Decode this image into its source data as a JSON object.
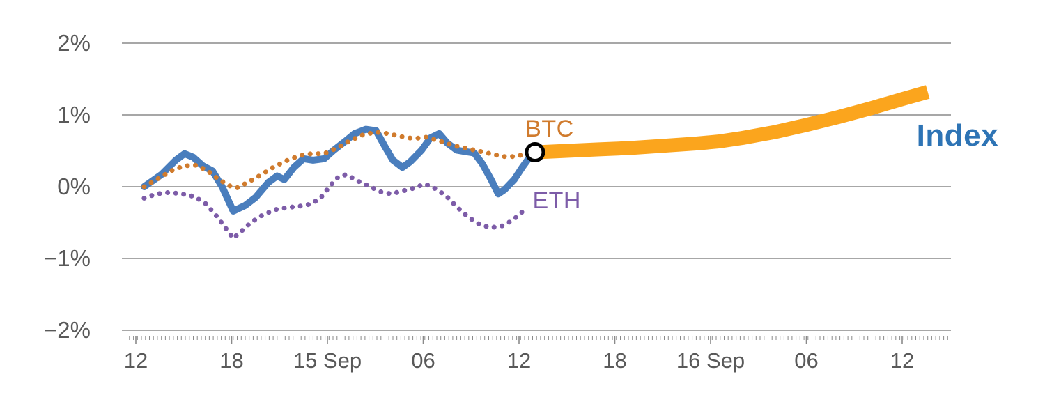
{
  "colors": {
    "background": "#FFFFFF",
    "grid": "#8A8A8A",
    "axis_text": "#595959",
    "index_line": "#4A7EBD",
    "index_label": "#2E74B5",
    "btc": "#D07B2D",
    "eth": "#7D5CA8",
    "forecast": "#FBA51D",
    "marker_ring": "#000000"
  },
  "chart_data": {
    "type": "line",
    "title": "",
    "xlabel": "",
    "ylabel": "",
    "grid": "horizontal",
    "legend_position": "inline-labels",
    "ylim": [
      -2.4,
      2.05
    ],
    "y_ticks": {
      "values": [
        2,
        1,
        0,
        -1,
        -2
      ],
      "labels": [
        "2%",
        "1%",
        "0%",
        "−1%",
        "−2%"
      ]
    },
    "x_ticks": {
      "hours": [
        0,
        6,
        12,
        18,
        24,
        30,
        36,
        42,
        48
      ],
      "labels": [
        "12",
        "18",
        "15 Sep",
        "06",
        "12",
        "18",
        "16 Sep",
        "06",
        "12"
      ]
    },
    "series": [
      {
        "id": "forecast",
        "name": "Index forecast",
        "color": "#FBA51D",
        "style": "solid",
        "width": 20,
        "cap": "butt",
        "points": [
          [
            25.0,
            0.48
          ],
          [
            27,
            0.5
          ],
          [
            29,
            0.52
          ],
          [
            31,
            0.54
          ],
          [
            33,
            0.57
          ],
          [
            35,
            0.6
          ],
          [
            36.5,
            0.63
          ],
          [
            38,
            0.68
          ],
          [
            40,
            0.76
          ],
          [
            42,
            0.86
          ],
          [
            44,
            0.97
          ],
          [
            46,
            1.09
          ],
          [
            48,
            1.22
          ],
          [
            49.6,
            1.32
          ]
        ]
      },
      {
        "id": "index",
        "name": "Index",
        "color": "#4A7EBD",
        "style": "solid",
        "width": 10,
        "cap": "round",
        "points": [
          [
            0.52,
            0.0
          ],
          [
            1.6,
            0.17
          ],
          [
            2.5,
            0.37
          ],
          [
            3.05,
            0.46
          ],
          [
            3.6,
            0.41
          ],
          [
            4.2,
            0.29
          ],
          [
            4.8,
            0.22
          ],
          [
            5.4,
            0.0
          ],
          [
            6.1,
            -0.34
          ],
          [
            6.85,
            -0.26
          ],
          [
            7.5,
            -0.15
          ],
          [
            8.3,
            0.06
          ],
          [
            8.85,
            0.15
          ],
          [
            9.3,
            0.1
          ],
          [
            9.9,
            0.27
          ],
          [
            10.5,
            0.39
          ],
          [
            11.1,
            0.37
          ],
          [
            11.8,
            0.39
          ],
          [
            12.4,
            0.51
          ],
          [
            13.1,
            0.63
          ],
          [
            13.7,
            0.74
          ],
          [
            14.4,
            0.8
          ],
          [
            15.05,
            0.78
          ],
          [
            15.6,
            0.56
          ],
          [
            16.1,
            0.37
          ],
          [
            16.7,
            0.27
          ],
          [
            17.2,
            0.35
          ],
          [
            17.9,
            0.51
          ],
          [
            18.45,
            0.68
          ],
          [
            19.0,
            0.74
          ],
          [
            19.5,
            0.61
          ],
          [
            20.1,
            0.51
          ],
          [
            20.6,
            0.49
          ],
          [
            21.2,
            0.47
          ],
          [
            21.7,
            0.32
          ],
          [
            22.25,
            0.1
          ],
          [
            22.7,
            -0.1
          ],
          [
            23.1,
            -0.04
          ],
          [
            23.7,
            0.1
          ],
          [
            24.2,
            0.27
          ],
          [
            24.7,
            0.42
          ],
          [
            25.0,
            0.48
          ]
        ]
      },
      {
        "id": "btc",
        "name": "BTC",
        "color": "#D07B2D",
        "style": "dotted",
        "width": 7,
        "cap": "round",
        "points": [
          [
            0.52,
            0.0
          ],
          [
            1.3,
            0.1
          ],
          [
            2.2,
            0.22
          ],
          [
            3.0,
            0.29
          ],
          [
            3.8,
            0.3
          ],
          [
            4.5,
            0.22
          ],
          [
            5.2,
            0.1
          ],
          [
            5.9,
            0.01
          ],
          [
            6.3,
            -0.02
          ],
          [
            7.0,
            0.06
          ],
          [
            7.8,
            0.16
          ],
          [
            8.6,
            0.27
          ],
          [
            9.4,
            0.36
          ],
          [
            10.2,
            0.43
          ],
          [
            11.0,
            0.46
          ],
          [
            11.8,
            0.46
          ],
          [
            12.6,
            0.54
          ],
          [
            13.4,
            0.64
          ],
          [
            14.2,
            0.72
          ],
          [
            15.0,
            0.76
          ],
          [
            15.8,
            0.74
          ],
          [
            16.6,
            0.7
          ],
          [
            17.4,
            0.67
          ],
          [
            18.2,
            0.69
          ],
          [
            19.0,
            0.64
          ],
          [
            19.8,
            0.58
          ],
          [
            20.6,
            0.54
          ],
          [
            21.4,
            0.5
          ],
          [
            22.2,
            0.46
          ],
          [
            23.0,
            0.42
          ],
          [
            23.8,
            0.42
          ],
          [
            24.6,
            0.47
          ]
        ]
      },
      {
        "id": "eth",
        "name": "ETH",
        "color": "#7D5CA8",
        "style": "dotted",
        "width": 7,
        "cap": "round",
        "points": [
          [
            0.52,
            -0.16
          ],
          [
            1.3,
            -0.1
          ],
          [
            2.1,
            -0.08
          ],
          [
            2.9,
            -0.1
          ],
          [
            3.7,
            -0.14
          ],
          [
            4.4,
            -0.24
          ],
          [
            5.1,
            -0.42
          ],
          [
            5.7,
            -0.6
          ],
          [
            6.1,
            -0.72
          ],
          [
            6.6,
            -0.62
          ],
          [
            7.2,
            -0.5
          ],
          [
            7.9,
            -0.4
          ],
          [
            8.7,
            -0.32
          ],
          [
            9.5,
            -0.29
          ],
          [
            10.3,
            -0.27
          ],
          [
            11.0,
            -0.24
          ],
          [
            11.6,
            -0.15
          ],
          [
            12.2,
            0.02
          ],
          [
            12.7,
            0.14
          ],
          [
            13.2,
            0.17
          ],
          [
            13.9,
            0.08
          ],
          [
            14.6,
            0.01
          ],
          [
            15.3,
            -0.07
          ],
          [
            16.0,
            -0.1
          ],
          [
            16.7,
            -0.06
          ],
          [
            17.4,
            -0.02
          ],
          [
            18.1,
            0.04
          ],
          [
            18.7,
            -0.02
          ],
          [
            19.4,
            -0.12
          ],
          [
            20.1,
            -0.28
          ],
          [
            20.8,
            -0.42
          ],
          [
            21.5,
            -0.52
          ],
          [
            22.2,
            -0.57
          ],
          [
            22.9,
            -0.55
          ],
          [
            23.6,
            -0.47
          ],
          [
            24.3,
            -0.33
          ]
        ]
      }
    ],
    "marker": {
      "h": 25.0,
      "v": 0.48,
      "radius": 12,
      "ring_color": "#000000",
      "ring_width": 5,
      "fill": "#FFFFFF"
    },
    "labels": [
      {
        "id": "btc",
        "text": "BTC",
        "color": "#D07B2D",
        "h": 24.4,
        "v": 0.64,
        "size": 34,
        "weight": "400"
      },
      {
        "id": "eth",
        "text": "ETH",
        "color": "#7D5CA8",
        "h": 24.85,
        "v": -0.36,
        "size": 34,
        "weight": "400"
      },
      {
        "id": "index",
        "text": "Index",
        "color": "#2E74B5",
        "h": 48.9,
        "v": 0.5,
        "size": 44,
        "weight": "700"
      }
    ]
  }
}
